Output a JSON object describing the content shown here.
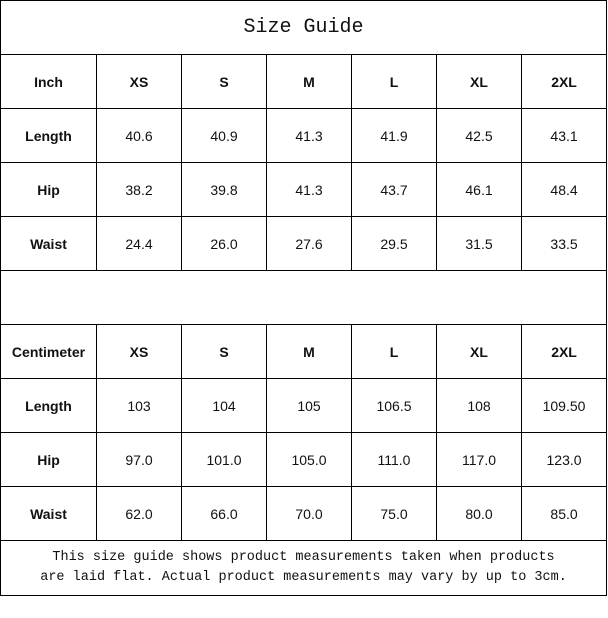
{
  "title": "Size Guide",
  "inch": {
    "header": [
      "Inch",
      "XS",
      "S",
      "M",
      "L",
      "XL",
      "2XL"
    ],
    "rows": [
      [
        "Length",
        "40.6",
        "40.9",
        "41.3",
        "41.9",
        "42.5",
        "43.1"
      ],
      [
        "Hip",
        "38.2",
        "39.8",
        "41.3",
        "43.7",
        "46.1",
        "48.4"
      ],
      [
        "Waist",
        "24.4",
        "26.0",
        "27.6",
        "29.5",
        "31.5",
        "33.5"
      ]
    ]
  },
  "cm": {
    "header": [
      "Centimeter",
      "XS",
      "S",
      "M",
      "L",
      "XL",
      "2XL"
    ],
    "rows": [
      [
        "Length",
        "103",
        "104",
        "105",
        "106.5",
        "108",
        "109.50"
      ],
      [
        "Hip",
        "97.0",
        "101.0",
        "105.0",
        "111.0",
        "117.0",
        "123.0"
      ],
      [
        "Waist",
        "62.0",
        "66.0",
        "70.0",
        "75.0",
        "80.0",
        "85.0"
      ]
    ]
  },
  "note": {
    "line1": "This size guide shows product measurements taken when products",
    "line2": "are laid flat. Actual product measurements may vary by up to 3cm."
  }
}
